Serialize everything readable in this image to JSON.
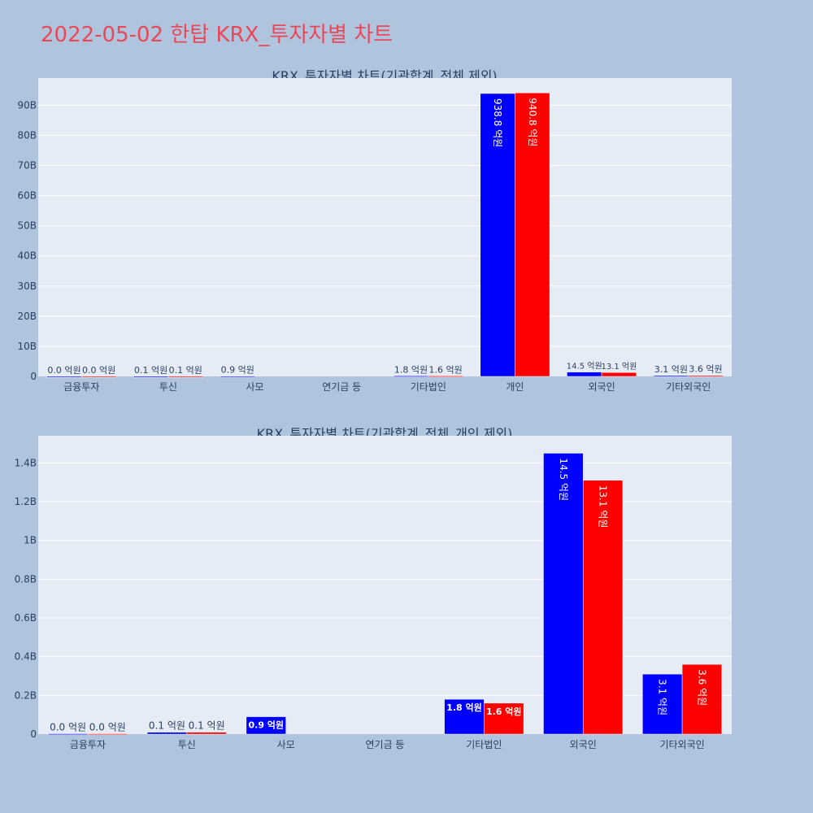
{
  "title": "2022-05-02 한탑 KRX_투자자별 차트",
  "colors": {
    "buy": "#0000ff",
    "sell": "#ff0000",
    "plot_bg": "#e5ecf6",
    "page_bg": "#b0c4de",
    "title": "#e8495a",
    "text": "#2a3f5f"
  },
  "chart_data": [
    {
      "type": "bar",
      "title": "KRX_투자자별 차트(기관합계_전체 제외)",
      "categories": [
        "금융투자",
        "투신",
        "사모",
        "연기금 등",
        "기타법인",
        "개인",
        "외국인",
        "기타외국인"
      ],
      "series": [
        {
          "color": "#0000ff",
          "values": [
            0.002,
            0.01,
            0.09,
            0,
            0.18,
            93.88,
            1.45,
            0.31
          ],
          "labels": [
            "0.0 억원",
            "0.1 억원",
            "0.9 억원",
            "",
            "1.8 억원",
            "938.8 억원",
            "14.5 억원",
            "3.1 억원"
          ]
        },
        {
          "color": "#ff0000",
          "values": [
            0.002,
            0.01,
            0,
            0,
            0.16,
            94.08,
            1.31,
            0.36
          ],
          "labels": [
            "0.0 억원",
            "0.1 억원",
            "",
            "",
            "1.6 억원",
            "940.8 억원",
            "13.1 억원",
            "3.6 억원"
          ]
        }
      ],
      "yticks": [
        "0",
        "10B",
        "20B",
        "30B",
        "40B",
        "50B",
        "60B",
        "70B",
        "80B",
        "90B"
      ],
      "ytick_values": [
        0,
        10,
        20,
        30,
        40,
        50,
        60,
        70,
        80,
        90
      ],
      "ylim": [
        0,
        99
      ],
      "grid": true
    },
    {
      "type": "bar",
      "title": "KRX_투자자별 차트(기관합계_전체_개인 제외)",
      "categories": [
        "금융투자",
        "투신",
        "사모",
        "연기금 등",
        "기타법인",
        "외국인",
        "기타외국인"
      ],
      "series": [
        {
          "color": "#0000ff",
          "values": [
            0.002,
            0.01,
            0.09,
            0,
            0.18,
            1.45,
            0.31
          ],
          "labels": [
            "0.0 억원",
            "0.1 억원",
            "0.9 억원",
            "",
            "1.8 억원",
            "14.5 억원",
            "3.1 억원"
          ]
        },
        {
          "color": "#ff0000",
          "values": [
            0.002,
            0.01,
            0,
            0,
            0.16,
            1.31,
            0.36
          ],
          "labels": [
            "0.0 억원",
            "0.1 억원",
            "",
            "",
            "1.6 억원",
            "13.1 억원",
            "3.6 억원"
          ]
        }
      ],
      "yticks": [
        "0",
        "0.2B",
        "0.4B",
        "0.6B",
        "0.8B",
        "1B",
        "1.2B",
        "1.4B"
      ],
      "ytick_values": [
        0,
        0.2,
        0.4,
        0.6,
        0.8,
        1.0,
        1.2,
        1.4
      ],
      "ylim": [
        0,
        1.54
      ],
      "grid": true
    }
  ]
}
